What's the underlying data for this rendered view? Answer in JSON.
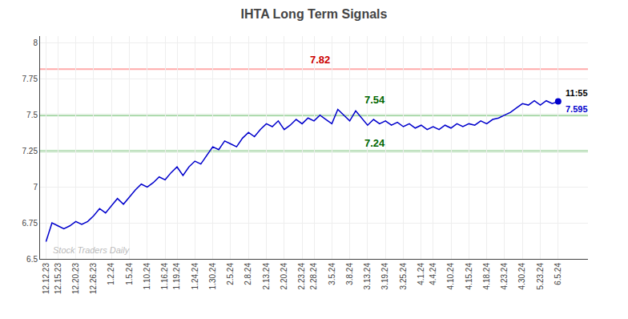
{
  "chart_data": {
    "type": "line",
    "title": "IHTA Long Term Signals",
    "categories": [
      "12.12.23",
      null,
      "12.15.23",
      null,
      null,
      "12.20.23",
      null,
      null,
      "12.26.23",
      null,
      null,
      "1.2.24",
      null,
      null,
      "1.5.24",
      null,
      null,
      "1.10.24",
      null,
      null,
      "1.16.24",
      null,
      "1.19.24",
      null,
      null,
      "1.24.24",
      null,
      null,
      "1.30.24",
      null,
      null,
      "2.5.24",
      null,
      null,
      "2.8.24",
      null,
      null,
      "2.13.24",
      null,
      null,
      "2.20.24",
      null,
      null,
      "2.23.24",
      null,
      "2.28.24",
      null,
      null,
      "3.5.24",
      null,
      null,
      "3.8.24",
      null,
      null,
      "3.13.24",
      null,
      null,
      "3.19.24",
      null,
      null,
      "3.25.24",
      null,
      null,
      "4.1.24",
      null,
      "4.4.24",
      null,
      null,
      "4.10.24",
      null,
      null,
      "4.15.24",
      null,
      null,
      "4.18.24",
      null,
      null,
      "4.23.24",
      null,
      null,
      "4.30.24",
      null,
      null,
      "5.23.24",
      null,
      null,
      "6.5.24"
    ],
    "values": [
      6.62,
      6.75,
      6.73,
      6.71,
      6.73,
      6.76,
      6.74,
      6.76,
      6.8,
      6.85,
      6.82,
      6.87,
      6.92,
      6.88,
      6.93,
      6.98,
      7.02,
      7.0,
      7.03,
      7.07,
      7.05,
      7.1,
      7.14,
      7.08,
      7.14,
      7.18,
      7.16,
      7.22,
      7.28,
      7.26,
      7.32,
      7.3,
      7.28,
      7.34,
      7.38,
      7.35,
      7.4,
      7.44,
      7.42,
      7.46,
      7.4,
      7.43,
      7.47,
      7.44,
      7.48,
      7.46,
      7.5,
      7.47,
      7.44,
      7.54,
      7.5,
      7.46,
      7.53,
      7.48,
      7.43,
      7.47,
      7.44,
      7.46,
      7.43,
      7.45,
      7.42,
      7.44,
      7.41,
      7.43,
      7.4,
      7.42,
      7.4,
      7.43,
      7.41,
      7.44,
      7.42,
      7.44,
      7.43,
      7.46,
      7.44,
      7.47,
      7.48,
      7.5,
      7.52,
      7.55,
      7.58,
      7.57,
      7.6,
      7.57,
      7.6,
      7.58,
      7.595
    ],
    "color": "#0000cc",
    "ylim": [
      6.5,
      8.05
    ],
    "yticks": [
      6.5,
      6.75,
      7,
      7.25,
      7.5,
      7.75,
      8
    ],
    "grid": true,
    "hlines": [
      {
        "value": 7.82,
        "color": "#ffaaaa"
      },
      {
        "value": 7.5,
        "color": "#55bb55"
      },
      {
        "value": 7.25,
        "color": "#55bb55"
      }
    ],
    "annotations": [
      {
        "text": "7.82",
        "y": 7.82,
        "color": "#cc0000"
      },
      {
        "text": "7.54",
        "y": 7.54,
        "color": "#006600"
      },
      {
        "text": "7.24",
        "y": 7.24,
        "color": "#006600"
      }
    ],
    "last_point": {
      "marker": "circle",
      "color": "#0000cc",
      "labels": [
        {
          "text": "11:55",
          "color": "#000000"
        },
        {
          "text": "7.595",
          "color": "#0000cc"
        }
      ]
    },
    "watermark": {
      "text": "Stock Traders Daily",
      "color": "#bbbbbb"
    }
  }
}
